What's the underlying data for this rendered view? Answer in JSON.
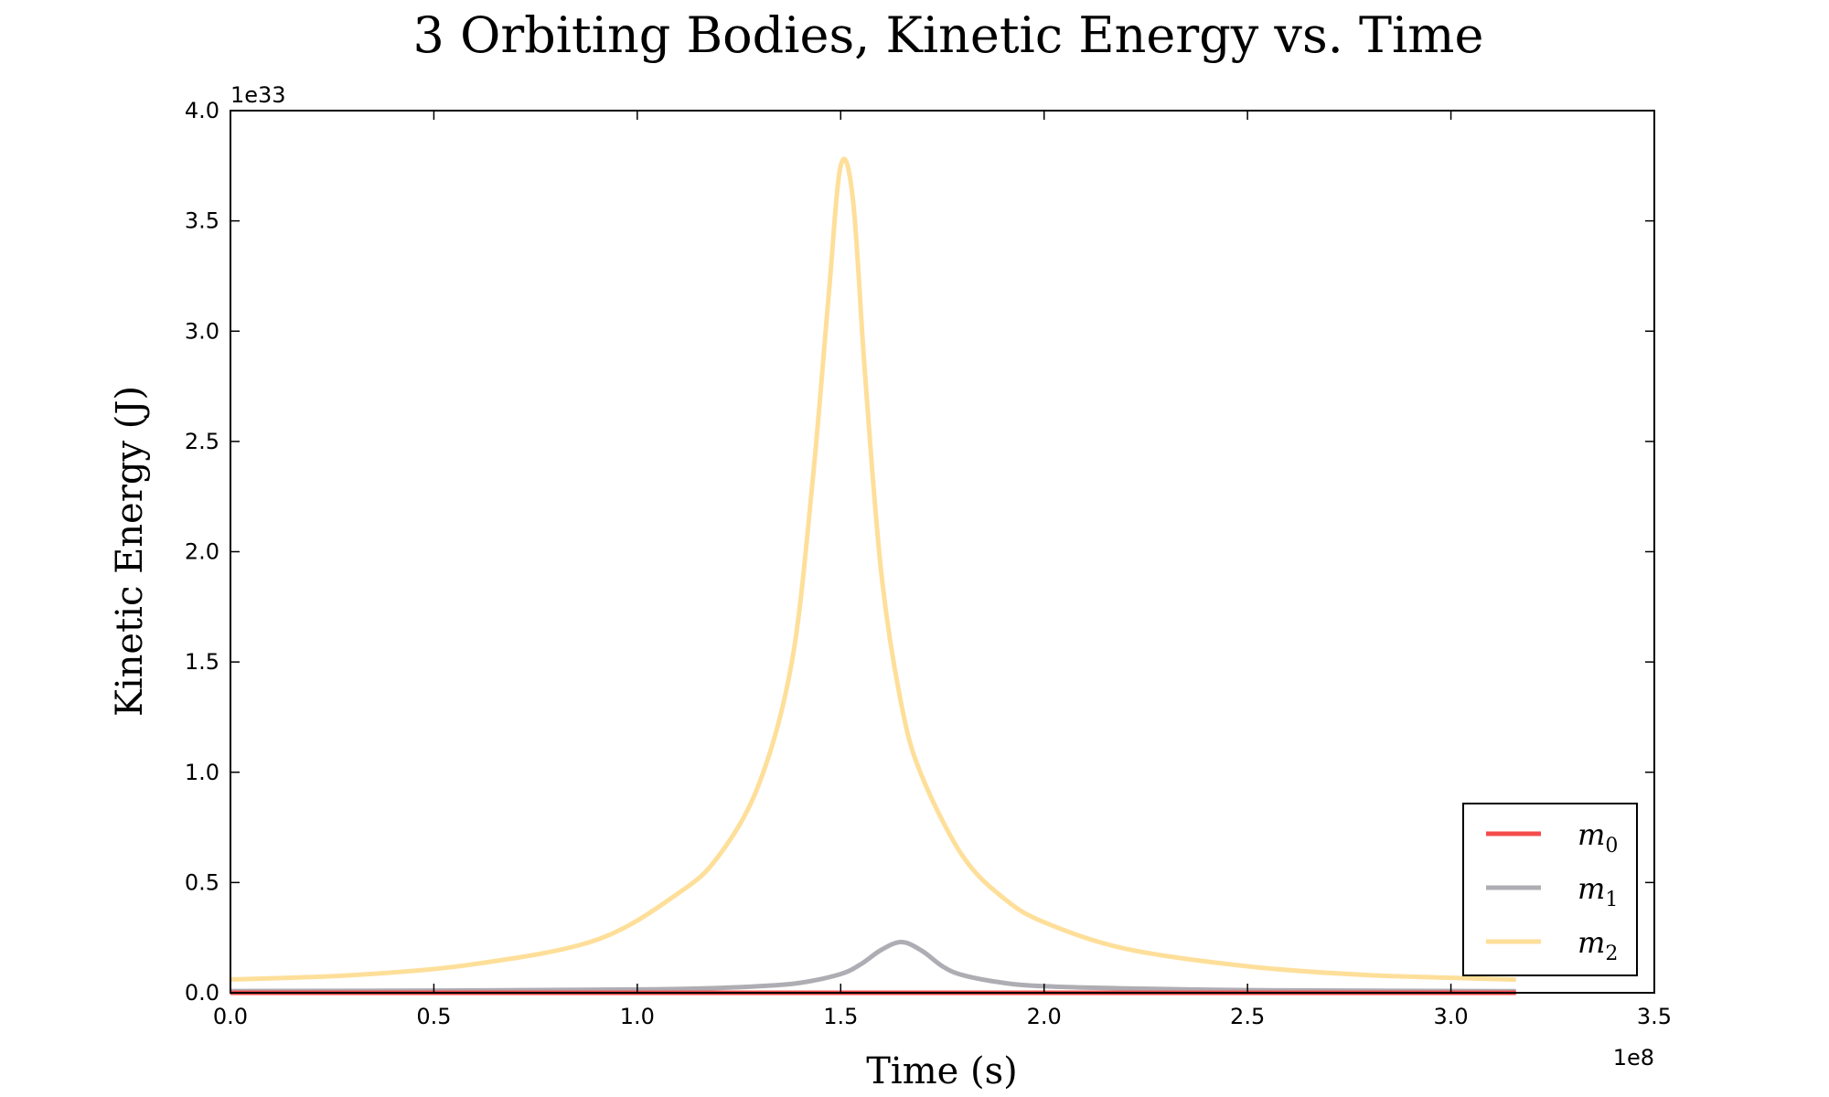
{
  "chart_data": {
    "type": "line",
    "title": "3 Orbiting Bodies, Kinetic Energy vs. Time",
    "xlabel": "Time (s)",
    "ylabel": "Kinetic Energy (J)",
    "x_multiplier_label": "1e8",
    "y_multiplier_label": "1e33",
    "xlim": [
      0.0,
      3.5
    ],
    "ylim": [
      0.0,
      4.0
    ],
    "x_ticks": [
      "0.0",
      "0.5",
      "1.0",
      "1.5",
      "2.0",
      "2.5",
      "3.0",
      "3.5"
    ],
    "y_ticks": [
      "0.0",
      "0.5",
      "1.0",
      "1.5",
      "2.0",
      "2.5",
      "3.0",
      "3.5",
      "4.0"
    ],
    "grid": false,
    "legend_position": "bottom-right",
    "series": [
      {
        "name": "m",
        "subscript": "0",
        "color": "#f54b4b",
        "x": [
          0.0,
          0.5,
          1.0,
          1.5,
          2.0,
          2.5,
          3.0,
          3.16
        ],
        "y": [
          0.0,
          0.0,
          0.0,
          0.0,
          0.0,
          0.0,
          0.0,
          0.0
        ]
      },
      {
        "name": "m",
        "subscript": "1",
        "color": "#aeadb3",
        "x": [
          0.0,
          0.5,
          1.0,
          1.2,
          1.3,
          1.4,
          1.5,
          1.55,
          1.6,
          1.65,
          1.7,
          1.75,
          1.8,
          1.9,
          2.0,
          2.2,
          2.5,
          2.8,
          3.16
        ],
        "y": [
          0.008,
          0.01,
          0.015,
          0.022,
          0.03,
          0.045,
          0.085,
          0.13,
          0.195,
          0.23,
          0.19,
          0.12,
          0.08,
          0.045,
          0.03,
          0.02,
          0.012,
          0.009,
          0.007
        ]
      },
      {
        "name": "m",
        "subscript": "2",
        "color": "#fedf9a",
        "x": [
          0.0,
          0.3,
          0.6,
          0.9,
          1.1,
          1.2,
          1.3,
          1.38,
          1.43,
          1.47,
          1.5,
          1.53,
          1.56,
          1.6,
          1.65,
          1.7,
          1.8,
          1.9,
          2.0,
          2.2,
          2.5,
          2.8,
          3.16
        ],
        "y": [
          0.06,
          0.08,
          0.13,
          0.24,
          0.45,
          0.62,
          0.95,
          1.5,
          2.3,
          3.15,
          3.75,
          3.6,
          2.8,
          1.9,
          1.3,
          0.98,
          0.62,
          0.43,
          0.32,
          0.2,
          0.12,
          0.08,
          0.06
        ]
      }
    ]
  }
}
